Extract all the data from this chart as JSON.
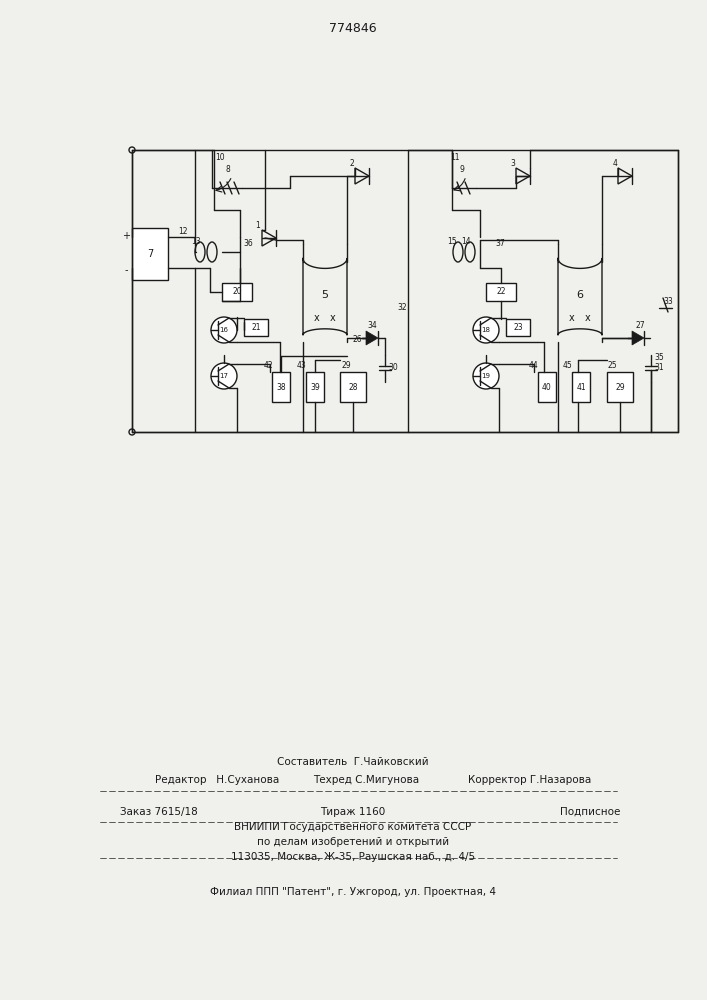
{
  "patent_number": "774846",
  "bg_color": "#f0f0ec",
  "line_color": "#1a1a1a",
  "footer": {
    "line1_center": "Составитель  Г.Чайковский",
    "line2_left": "Редактор   Н.Суханова",
    "line2_mid": "Техред С.Мигунова",
    "line2_right": "Корректор Г.Назарова",
    "line3_left": "Заказ 7615/18",
    "line3_mid": "Тираж 1160",
    "line3_right": "Подписное",
    "line4": "ВНИИПИ Государственного комитета СССР",
    "line5": "по делам изобретений и открытий",
    "line6": "113035, Москва, Ж-35, Раушская наб., д. 4/5",
    "line7": "Филиал ППП \"Патент\", г. Ужгород, ул. Проектная, 4"
  }
}
